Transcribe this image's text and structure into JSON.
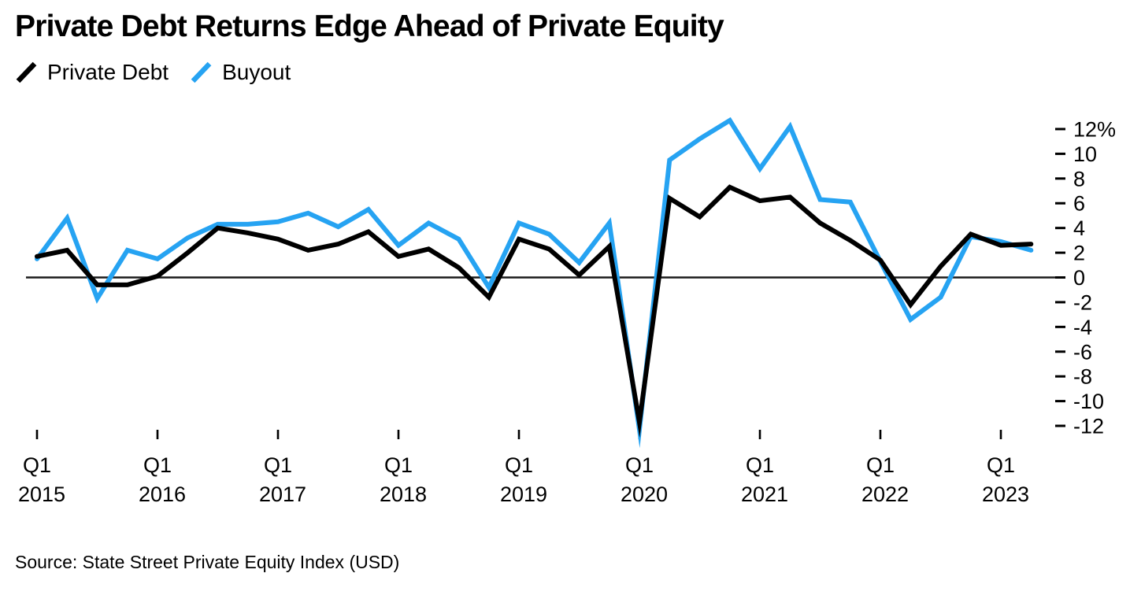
{
  "header": {
    "title": "Private Debt Returns Edge Ahead of Private Equity"
  },
  "source": "Source: State Street Private Equity Index (USD)",
  "chart_data": {
    "type": "line",
    "title": "Private Debt Returns Edge Ahead of Private Equity",
    "xlabel": "",
    "ylabel": "",
    "unit": "%",
    "grid": "zero-line-only",
    "legend_position": "top-left",
    "ylim": [
      -13,
      13
    ],
    "categories": [
      "Q1 2015",
      "Q2 2015",
      "Q3 2015",
      "Q4 2015",
      "Q1 2016",
      "Q2 2016",
      "Q3 2016",
      "Q4 2016",
      "Q1 2017",
      "Q2 2017",
      "Q3 2017",
      "Q4 2017",
      "Q1 2018",
      "Q2 2018",
      "Q3 2018",
      "Q4 2018",
      "Q1 2019",
      "Q2 2019",
      "Q3 2019",
      "Q4 2019",
      "Q1 2020",
      "Q2 2020",
      "Q3 2020",
      "Q4 2020",
      "Q1 2021",
      "Q2 2021",
      "Q3 2021",
      "Q4 2021",
      "Q1 2022",
      "Q2 2022",
      "Q3 2022",
      "Q4 2022",
      "Q1 2023",
      "Q2 2023"
    ],
    "series": [
      {
        "name": "Private Debt",
        "color": "#000000",
        "values": [
          1.7,
          2.2,
          -0.6,
          -0.6,
          0.1,
          2.0,
          4.0,
          3.6,
          3.1,
          2.2,
          2.7,
          3.7,
          1.7,
          2.3,
          0.8,
          -1.6,
          3.1,
          2.3,
          0.2,
          2.5,
          -11.7,
          6.4,
          4.9,
          7.3,
          6.2,
          6.5,
          4.4,
          3.0,
          1.4,
          -2.2,
          0.9,
          3.5,
          2.6,
          2.7
        ]
      },
      {
        "name": "Buyout",
        "color": "#26A3F2",
        "values": [
          1.5,
          4.8,
          -1.7,
          2.2,
          1.5,
          3.2,
          4.3,
          4.3,
          4.5,
          5.2,
          4.1,
          5.5,
          2.6,
          4.4,
          3.1,
          -0.8,
          4.4,
          3.5,
          1.2,
          4.4,
          -12.3,
          9.5,
          11.2,
          12.7,
          8.8,
          12.2,
          6.3,
          6.1,
          1.3,
          -3.4,
          -1.6,
          3.3,
          2.9,
          2.2
        ]
      }
    ],
    "y_ticks": [
      {
        "label": "12%",
        "value": 12
      },
      {
        "label": "10",
        "value": 10
      },
      {
        "label": "8",
        "value": 8
      },
      {
        "label": "6",
        "value": 6
      },
      {
        "label": "4",
        "value": 4
      },
      {
        "label": "2",
        "value": 2
      },
      {
        "label": "0",
        "value": 0
      },
      {
        "label": "-2",
        "value": -2
      },
      {
        "label": "-4",
        "value": -4
      },
      {
        "label": "-6",
        "value": -6
      },
      {
        "label": "-8",
        "value": -8
      },
      {
        "label": "-10",
        "value": -10
      },
      {
        "label": "-12",
        "value": -12
      }
    ],
    "x_ticks": [
      {
        "label": "Q1",
        "year": "2015",
        "quarter_index": 0
      },
      {
        "label": "Q1",
        "year": "2016",
        "quarter_index": 4
      },
      {
        "label": "Q1",
        "year": "2017",
        "quarter_index": 8
      },
      {
        "label": "Q1",
        "year": "2018",
        "quarter_index": 12
      },
      {
        "label": "Q1",
        "year": "2019",
        "quarter_index": 16
      },
      {
        "label": "Q1",
        "year": "2020",
        "quarter_index": 20
      },
      {
        "label": "Q1",
        "year": "2021",
        "quarter_index": 24
      },
      {
        "label": "Q1",
        "year": "2022",
        "quarter_index": 28
      },
      {
        "label": "Q1",
        "year": "2023",
        "quarter_index": 32
      }
    ]
  }
}
